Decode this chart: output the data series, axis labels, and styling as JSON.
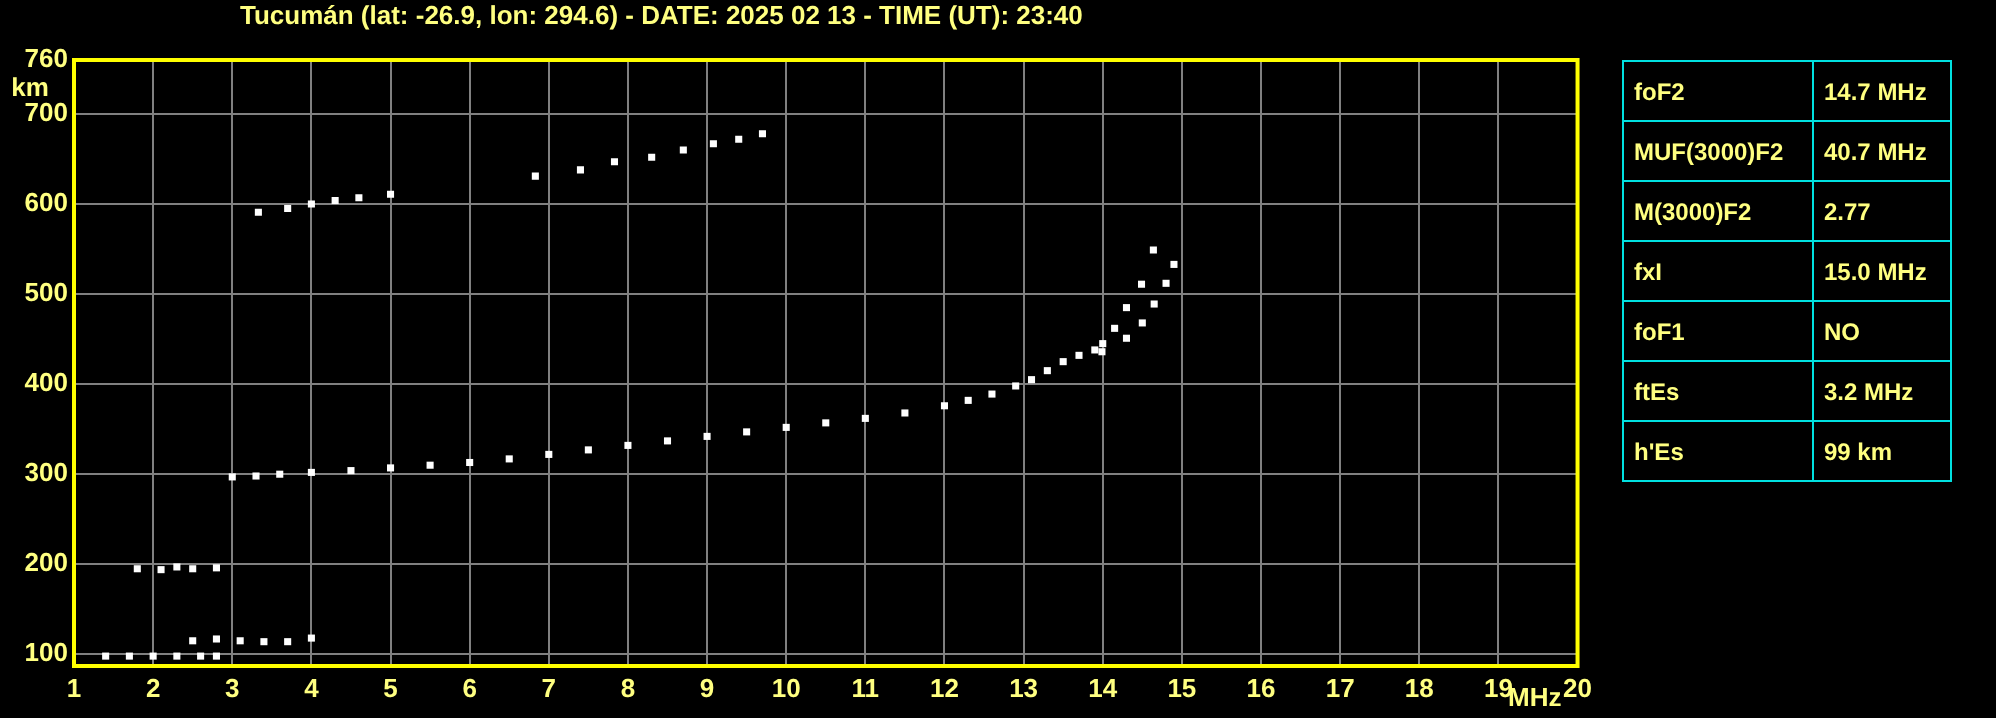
{
  "chart_data": {
    "type": "scatter",
    "title": "Tucumán (lat: -26.9, lon: 294.6) - DATE: 2025 02 13 - TIME (UT): 23:40",
    "xlabel": "MHz",
    "ylabel": "km",
    "xlim": [
      1,
      20
    ],
    "xticks": [
      1,
      2,
      3,
      4,
      5,
      6,
      7,
      8,
      9,
      10,
      11,
      12,
      13,
      14,
      15,
      16,
      17,
      18,
      19,
      20
    ],
    "ylim": [
      87,
      760
    ],
    "yticks": [
      100,
      200,
      300,
      400,
      500,
      600,
      700,
      760
    ],
    "grid": true,
    "marker": "square",
    "series": [
      {
        "color": "#ffffff",
        "x": [
          3.0,
          3.3,
          3.6,
          4.0,
          4.5,
          5.0,
          5.5,
          6.0,
          6.5,
          7.0,
          7.5,
          8.0,
          8.5,
          9.0,
          9.5,
          10.0,
          10.5,
          11.0,
          11.5,
          12.0,
          12.3,
          12.6,
          12.9,
          13.1,
          13.3,
          13.5,
          13.7,
          13.9
        ],
        "values": [
          297,
          298,
          300,
          302,
          304,
          307,
          310,
          313,
          317,
          322,
          327,
          332,
          337,
          342,
          347,
          352,
          357,
          362,
          368,
          376,
          382,
          389,
          398,
          405,
          415,
          425,
          432,
          438
        ]
      },
      {
        "color": "#ffffff",
        "x": [
          14.0,
          14.15,
          14.3,
          14.49,
          14.64
        ],
        "values": [
          445,
          462,
          485,
          511,
          549
        ]
      },
      {
        "color": "#ffffff",
        "x": [
          13.99,
          14.3,
          14.5,
          14.65,
          14.8,
          14.9
        ],
        "values": [
          436,
          451,
          468,
          489,
          512,
          533
        ]
      },
      {
        "color": "#ffffff",
        "x": [
          3.33,
          3.7,
          4.0,
          4.3,
          4.6,
          5.0
        ],
        "values": [
          591,
          595,
          600,
          604,
          607,
          611
        ]
      },
      {
        "color": "#ffffff",
        "x": [
          6.83,
          7.4,
          7.83,
          8.3,
          8.7,
          9.08,
          9.4,
          9.7
        ],
        "values": [
          631,
          638,
          647,
          652,
          660,
          667,
          672,
          678
        ]
      },
      {
        "color": "#ffffff",
        "x": [
          1.4,
          1.7,
          2.0,
          2.3,
          2.6,
          2.8
        ],
        "values": [
          98,
          98,
          98,
          98,
          98,
          98
        ]
      },
      {
        "color": "#ffffff",
        "x": [
          2.5,
          2.8,
          3.1,
          3.4,
          3.7,
          4.0
        ],
        "values": [
          115,
          117,
          115,
          114,
          114,
          118
        ]
      },
      {
        "color": "#ffffff",
        "x": [
          1.8,
          2.1,
          2.3,
          2.5,
          2.8
        ],
        "values": [
          195,
          194,
          197,
          195,
          196
        ]
      }
    ],
    "annotations": [
      "foF2",
      "14.7 MHz",
      "MUF(3000)F2",
      "40.7 MHz",
      "M(3000)F2",
      "2.77",
      "fxI",
      "15.0 MHz",
      "foF1",
      "NO",
      "ftEs",
      "3.2 MHz",
      "h'Es",
      "99 km"
    ]
  }
}
